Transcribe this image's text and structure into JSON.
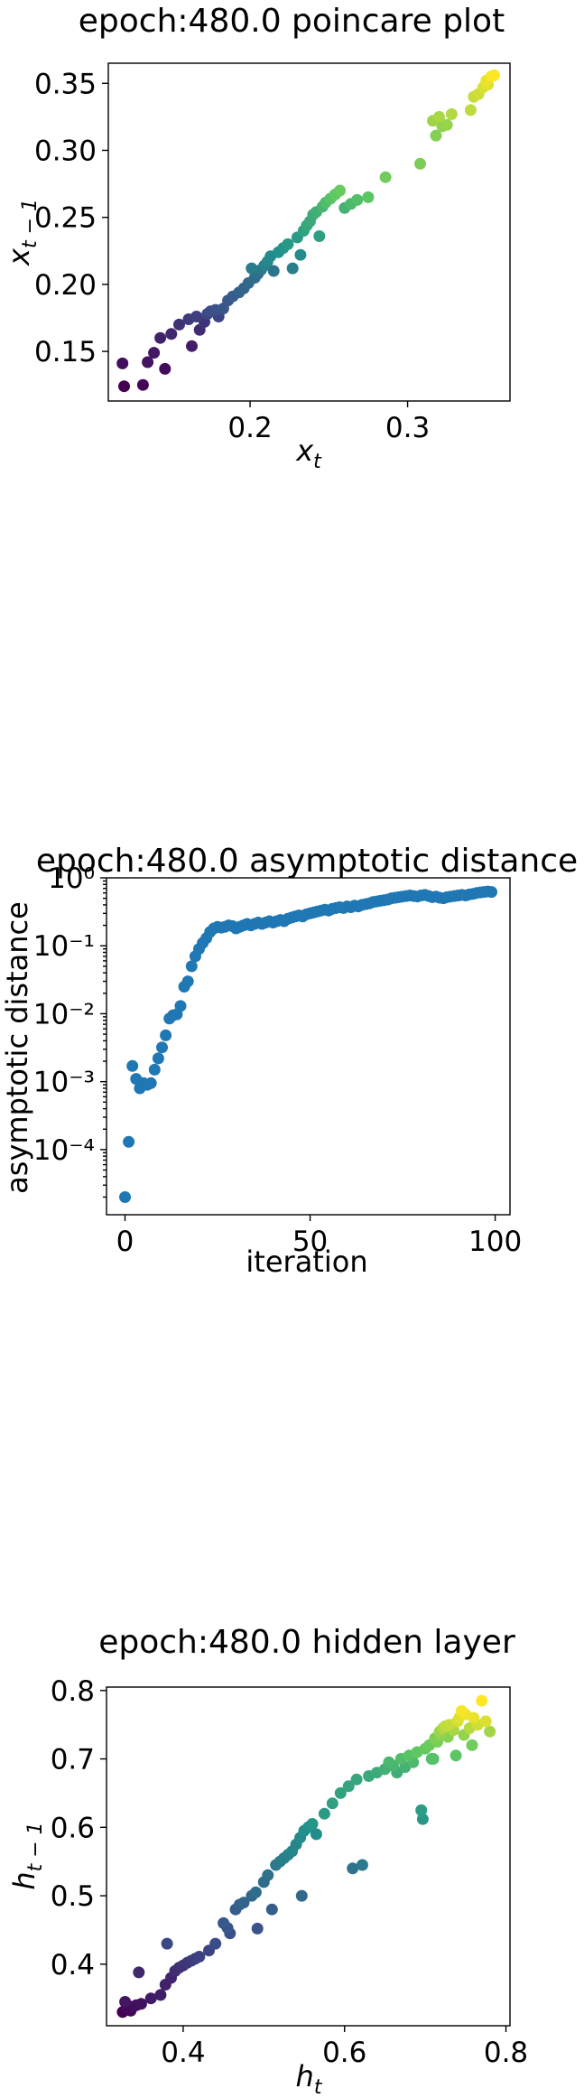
{
  "chart_data": [
    {
      "type": "scatter",
      "title": "epoch:480.0 poincare plot",
      "xlabel": "x_t",
      "ylabel": "x_{t-1}",
      "xlim": [
        0.11,
        0.365
      ],
      "ylim": [
        0.113,
        0.365
      ],
      "xticks": [
        0.2,
        0.3
      ],
      "xtick_labels": [
        "0.2",
        "0.3"
      ],
      "yticks": [
        0.15,
        0.2,
        0.25,
        0.3,
        0.35
      ],
      "ytick_labels": [
        "0.15",
        "0.20",
        "0.25",
        "0.30",
        "0.35"
      ],
      "grid": false,
      "colormap": "viridis",
      "points": [
        [
          0.12,
          0.124
        ],
        [
          0.132,
          0.125
        ],
        [
          0.119,
          0.141
        ],
        [
          0.135,
          0.142
        ],
        [
          0.139,
          0.149
        ],
        [
          0.143,
          0.16
        ],
        [
          0.146,
          0.137
        ],
        [
          0.15,
          0.163
        ],
        [
          0.155,
          0.17
        ],
        [
          0.161,
          0.174
        ],
        [
          0.163,
          0.154
        ],
        [
          0.166,
          0.176
        ],
        [
          0.168,
          0.166
        ],
        [
          0.171,
          0.172
        ],
        [
          0.173,
          0.178
        ],
        [
          0.175,
          0.18
        ],
        [
          0.178,
          0.181
        ],
        [
          0.18,
          0.176
        ],
        [
          0.183,
          0.182
        ],
        [
          0.186,
          0.188
        ],
        [
          0.189,
          0.191
        ],
        [
          0.193,
          0.194
        ],
        [
          0.196,
          0.197
        ],
        [
          0.199,
          0.201
        ],
        [
          0.201,
          0.212
        ],
        [
          0.203,
          0.205
        ],
        [
          0.205,
          0.208
        ],
        [
          0.207,
          0.211
        ],
        [
          0.209,
          0.214
        ],
        [
          0.211,
          0.217
        ],
        [
          0.213,
          0.221
        ],
        [
          0.215,
          0.21
        ],
        [
          0.218,
          0.224
        ],
        [
          0.221,
          0.227
        ],
        [
          0.224,
          0.23
        ],
        [
          0.227,
          0.212
        ],
        [
          0.23,
          0.235
        ],
        [
          0.232,
          0.222
        ],
        [
          0.234,
          0.24
        ],
        [
          0.236,
          0.244
        ],
        [
          0.238,
          0.247
        ],
        [
          0.24,
          0.252
        ],
        [
          0.242,
          0.254
        ],
        [
          0.244,
          0.236
        ],
        [
          0.246,
          0.258
        ],
        [
          0.248,
          0.261
        ],
        [
          0.251,
          0.264
        ],
        [
          0.254,
          0.267
        ],
        [
          0.257,
          0.27
        ],
        [
          0.26,
          0.257
        ],
        [
          0.264,
          0.26
        ],
        [
          0.268,
          0.263
        ],
        [
          0.275,
          0.265
        ],
        [
          0.286,
          0.28
        ],
        [
          0.308,
          0.29
        ],
        [
          0.316,
          0.322
        ],
        [
          0.318,
          0.311
        ],
        [
          0.32,
          0.325
        ],
        [
          0.322,
          0.318
        ],
        [
          0.325,
          0.319
        ],
        [
          0.328,
          0.327
        ],
        [
          0.34,
          0.33
        ],
        [
          0.342,
          0.34
        ],
        [
          0.345,
          0.342
        ],
        [
          0.348,
          0.347
        ],
        [
          0.35,
          0.352
        ],
        [
          0.351,
          0.349
        ],
        [
          0.353,
          0.355
        ],
        [
          0.355,
          0.356
        ]
      ]
    },
    {
      "type": "scatter",
      "title": "epoch:480.0 asymptotic distance",
      "xlabel": "iteration",
      "ylabel": "asymptotic distance",
      "xlim": [
        -5,
        104
      ],
      "ylim": [
        1.1e-05,
        1.0
      ],
      "yscale": "log",
      "xticks": [
        0,
        50,
        100
      ],
      "xtick_labels": [
        "0",
        "50",
        "100"
      ],
      "yticks": [
        0.0001,
        0.001,
        0.01,
        0.1,
        1
      ],
      "ytick_labels": [
        "10⁻⁴",
        "10⁻³",
        "10⁻²",
        "10⁻¹",
        "10⁰"
      ],
      "grid": false,
      "color": "#1f77b4",
      "x": [
        0,
        1,
        2,
        3,
        4,
        5,
        6,
        7,
        8,
        9,
        10,
        11,
        12,
        13,
        14,
        15,
        16,
        17,
        18,
        19,
        20,
        21,
        22,
        23,
        24,
        25,
        26,
        27,
        28,
        29,
        30,
        31,
        32,
        33,
        34,
        35,
        36,
        37,
        38,
        39,
        40,
        41,
        42,
        43,
        44,
        45,
        46,
        47,
        48,
        49,
        50,
        51,
        52,
        53,
        54,
        55,
        56,
        57,
        58,
        59,
        60,
        61,
        62,
        63,
        64,
        65,
        66,
        67,
        68,
        69,
        70,
        71,
        72,
        73,
        74,
        75,
        76,
        77,
        78,
        79,
        80,
        81,
        82,
        83,
        84,
        85,
        86,
        87,
        88,
        89,
        90,
        91,
        92,
        93,
        94,
        95,
        96,
        97,
        98,
        99
      ],
      "y": [
        2e-05,
        0.00013,
        0.0017,
        0.0011,
        0.0008,
        0.00095,
        0.0009,
        0.00095,
        0.0015,
        0.0022,
        0.0032,
        0.0048,
        0.0085,
        0.0095,
        0.0098,
        0.013,
        0.025,
        0.03,
        0.05,
        0.07,
        0.09,
        0.11,
        0.13,
        0.16,
        0.18,
        0.19,
        0.185,
        0.19,
        0.2,
        0.195,
        0.18,
        0.19,
        0.2,
        0.21,
        0.2,
        0.21,
        0.22,
        0.21,
        0.22,
        0.23,
        0.22,
        0.23,
        0.24,
        0.23,
        0.25,
        0.26,
        0.27,
        0.28,
        0.27,
        0.29,
        0.3,
        0.31,
        0.32,
        0.33,
        0.34,
        0.33,
        0.35,
        0.36,
        0.37,
        0.36,
        0.38,
        0.37,
        0.39,
        0.38,
        0.4,
        0.41,
        0.42,
        0.44,
        0.45,
        0.46,
        0.47,
        0.48,
        0.5,
        0.51,
        0.52,
        0.53,
        0.54,
        0.55,
        0.54,
        0.53,
        0.55,
        0.56,
        0.54,
        0.52,
        0.53,
        0.51,
        0.5,
        0.52,
        0.53,
        0.54,
        0.55,
        0.56,
        0.55,
        0.57,
        0.58,
        0.6,
        0.61,
        0.62,
        0.63,
        0.62
      ]
    },
    {
      "type": "scatter",
      "title": "epoch:480.0 hidden layer",
      "xlabel": "h_t",
      "ylabel": "h_{t-1}",
      "xlim": [
        0.305,
        0.805
      ],
      "ylim": [
        0.31,
        0.805
      ],
      "xticks": [
        0.4,
        0.6,
        0.8
      ],
      "xtick_labels": [
        "0.4",
        "0.6",
        "0.8"
      ],
      "yticks": [
        0.4,
        0.5,
        0.6,
        0.7,
        0.8
      ],
      "ytick_labels": [
        "0.4",
        "0.5",
        "0.6",
        "0.7",
        "0.8"
      ],
      "grid": false,
      "colormap": "viridis",
      "points": [
        [
          0.325,
          0.33
        ],
        [
          0.33,
          0.335
        ],
        [
          0.328,
          0.345
        ],
        [
          0.335,
          0.332
        ],
        [
          0.338,
          0.338
        ],
        [
          0.342,
          0.34
        ],
        [
          0.345,
          0.388
        ],
        [
          0.348,
          0.342
        ],
        [
          0.36,
          0.35
        ],
        [
          0.372,
          0.355
        ],
        [
          0.378,
          0.37
        ],
        [
          0.38,
          0.43
        ],
        [
          0.385,
          0.38
        ],
        [
          0.39,
          0.39
        ],
        [
          0.395,
          0.395
        ],
        [
          0.4,
          0.398
        ],
        [
          0.405,
          0.402
        ],
        [
          0.41,
          0.405
        ],
        [
          0.415,
          0.408
        ],
        [
          0.42,
          0.411
        ],
        [
          0.432,
          0.42
        ],
        [
          0.44,
          0.43
        ],
        [
          0.45,
          0.46
        ],
        [
          0.455,
          0.453
        ],
        [
          0.458,
          0.445
        ],
        [
          0.465,
          0.48
        ],
        [
          0.47,
          0.487
        ],
        [
          0.475,
          0.49
        ],
        [
          0.485,
          0.5
        ],
        [
          0.49,
          0.505
        ],
        [
          0.492,
          0.452
        ],
        [
          0.5,
          0.52
        ],
        [
          0.505,
          0.53
        ],
        [
          0.51,
          0.48
        ],
        [
          0.515,
          0.545
        ],
        [
          0.52,
          0.55
        ],
        [
          0.525,
          0.555
        ],
        [
          0.53,
          0.56
        ],
        [
          0.535,
          0.565
        ],
        [
          0.54,
          0.575
        ],
        [
          0.545,
          0.585
        ],
        [
          0.547,
          0.5
        ],
        [
          0.55,
          0.595
        ],
        [
          0.555,
          0.6
        ],
        [
          0.56,
          0.605
        ],
        [
          0.565,
          0.59
        ],
        [
          0.575,
          0.62
        ],
        [
          0.585,
          0.635
        ],
        [
          0.595,
          0.65
        ],
        [
          0.605,
          0.66
        ],
        [
          0.61,
          0.54
        ],
        [
          0.615,
          0.67
        ],
        [
          0.622,
          0.545
        ],
        [
          0.63,
          0.675
        ],
        [
          0.64,
          0.68
        ],
        [
          0.65,
          0.685
        ],
        [
          0.655,
          0.695
        ],
        [
          0.66,
          0.69
        ],
        [
          0.665,
          0.68
        ],
        [
          0.67,
          0.7
        ],
        [
          0.675,
          0.688
        ],
        [
          0.68,
          0.705
        ],
        [
          0.685,
          0.695
        ],
        [
          0.69,
          0.71
        ],
        [
          0.695,
          0.625
        ],
        [
          0.697,
          0.612
        ],
        [
          0.7,
          0.715
        ],
        [
          0.705,
          0.72
        ],
        [
          0.708,
          0.7
        ],
        [
          0.71,
          0.7
        ],
        [
          0.712,
          0.73
        ],
        [
          0.715,
          0.725
        ],
        [
          0.718,
          0.74
        ],
        [
          0.72,
          0.735
        ],
        [
          0.722,
          0.745
        ],
        [
          0.725,
          0.748
        ],
        [
          0.728,
          0.732
        ],
        [
          0.73,
          0.75
        ],
        [
          0.735,
          0.742
        ],
        [
          0.738,
          0.705
        ],
        [
          0.74,
          0.755
        ],
        [
          0.742,
          0.76
        ],
        [
          0.745,
          0.77
        ],
        [
          0.748,
          0.735
        ],
        [
          0.75,
          0.765
        ],
        [
          0.755,
          0.745
        ],
        [
          0.758,
          0.72
        ],
        [
          0.76,
          0.76
        ],
        [
          0.765,
          0.75
        ],
        [
          0.77,
          0.785
        ],
        [
          0.775,
          0.755
        ],
        [
          0.78,
          0.74
        ]
      ]
    }
  ],
  "charts": [
    {
      "title": "epoch:480.0 poincare plot",
      "x_axis_label": "x_t",
      "y_axis_label": "x_{t−1}"
    },
    {
      "title": "epoch:480.0 asymptotic distance",
      "x_axis_label": "iteration",
      "y_axis_label": "asymptotic distance"
    },
    {
      "title": "epoch:480.0 hidden layer",
      "x_axis_label": "h_t",
      "y_axis_label": "h_{t−1}"
    }
  ]
}
